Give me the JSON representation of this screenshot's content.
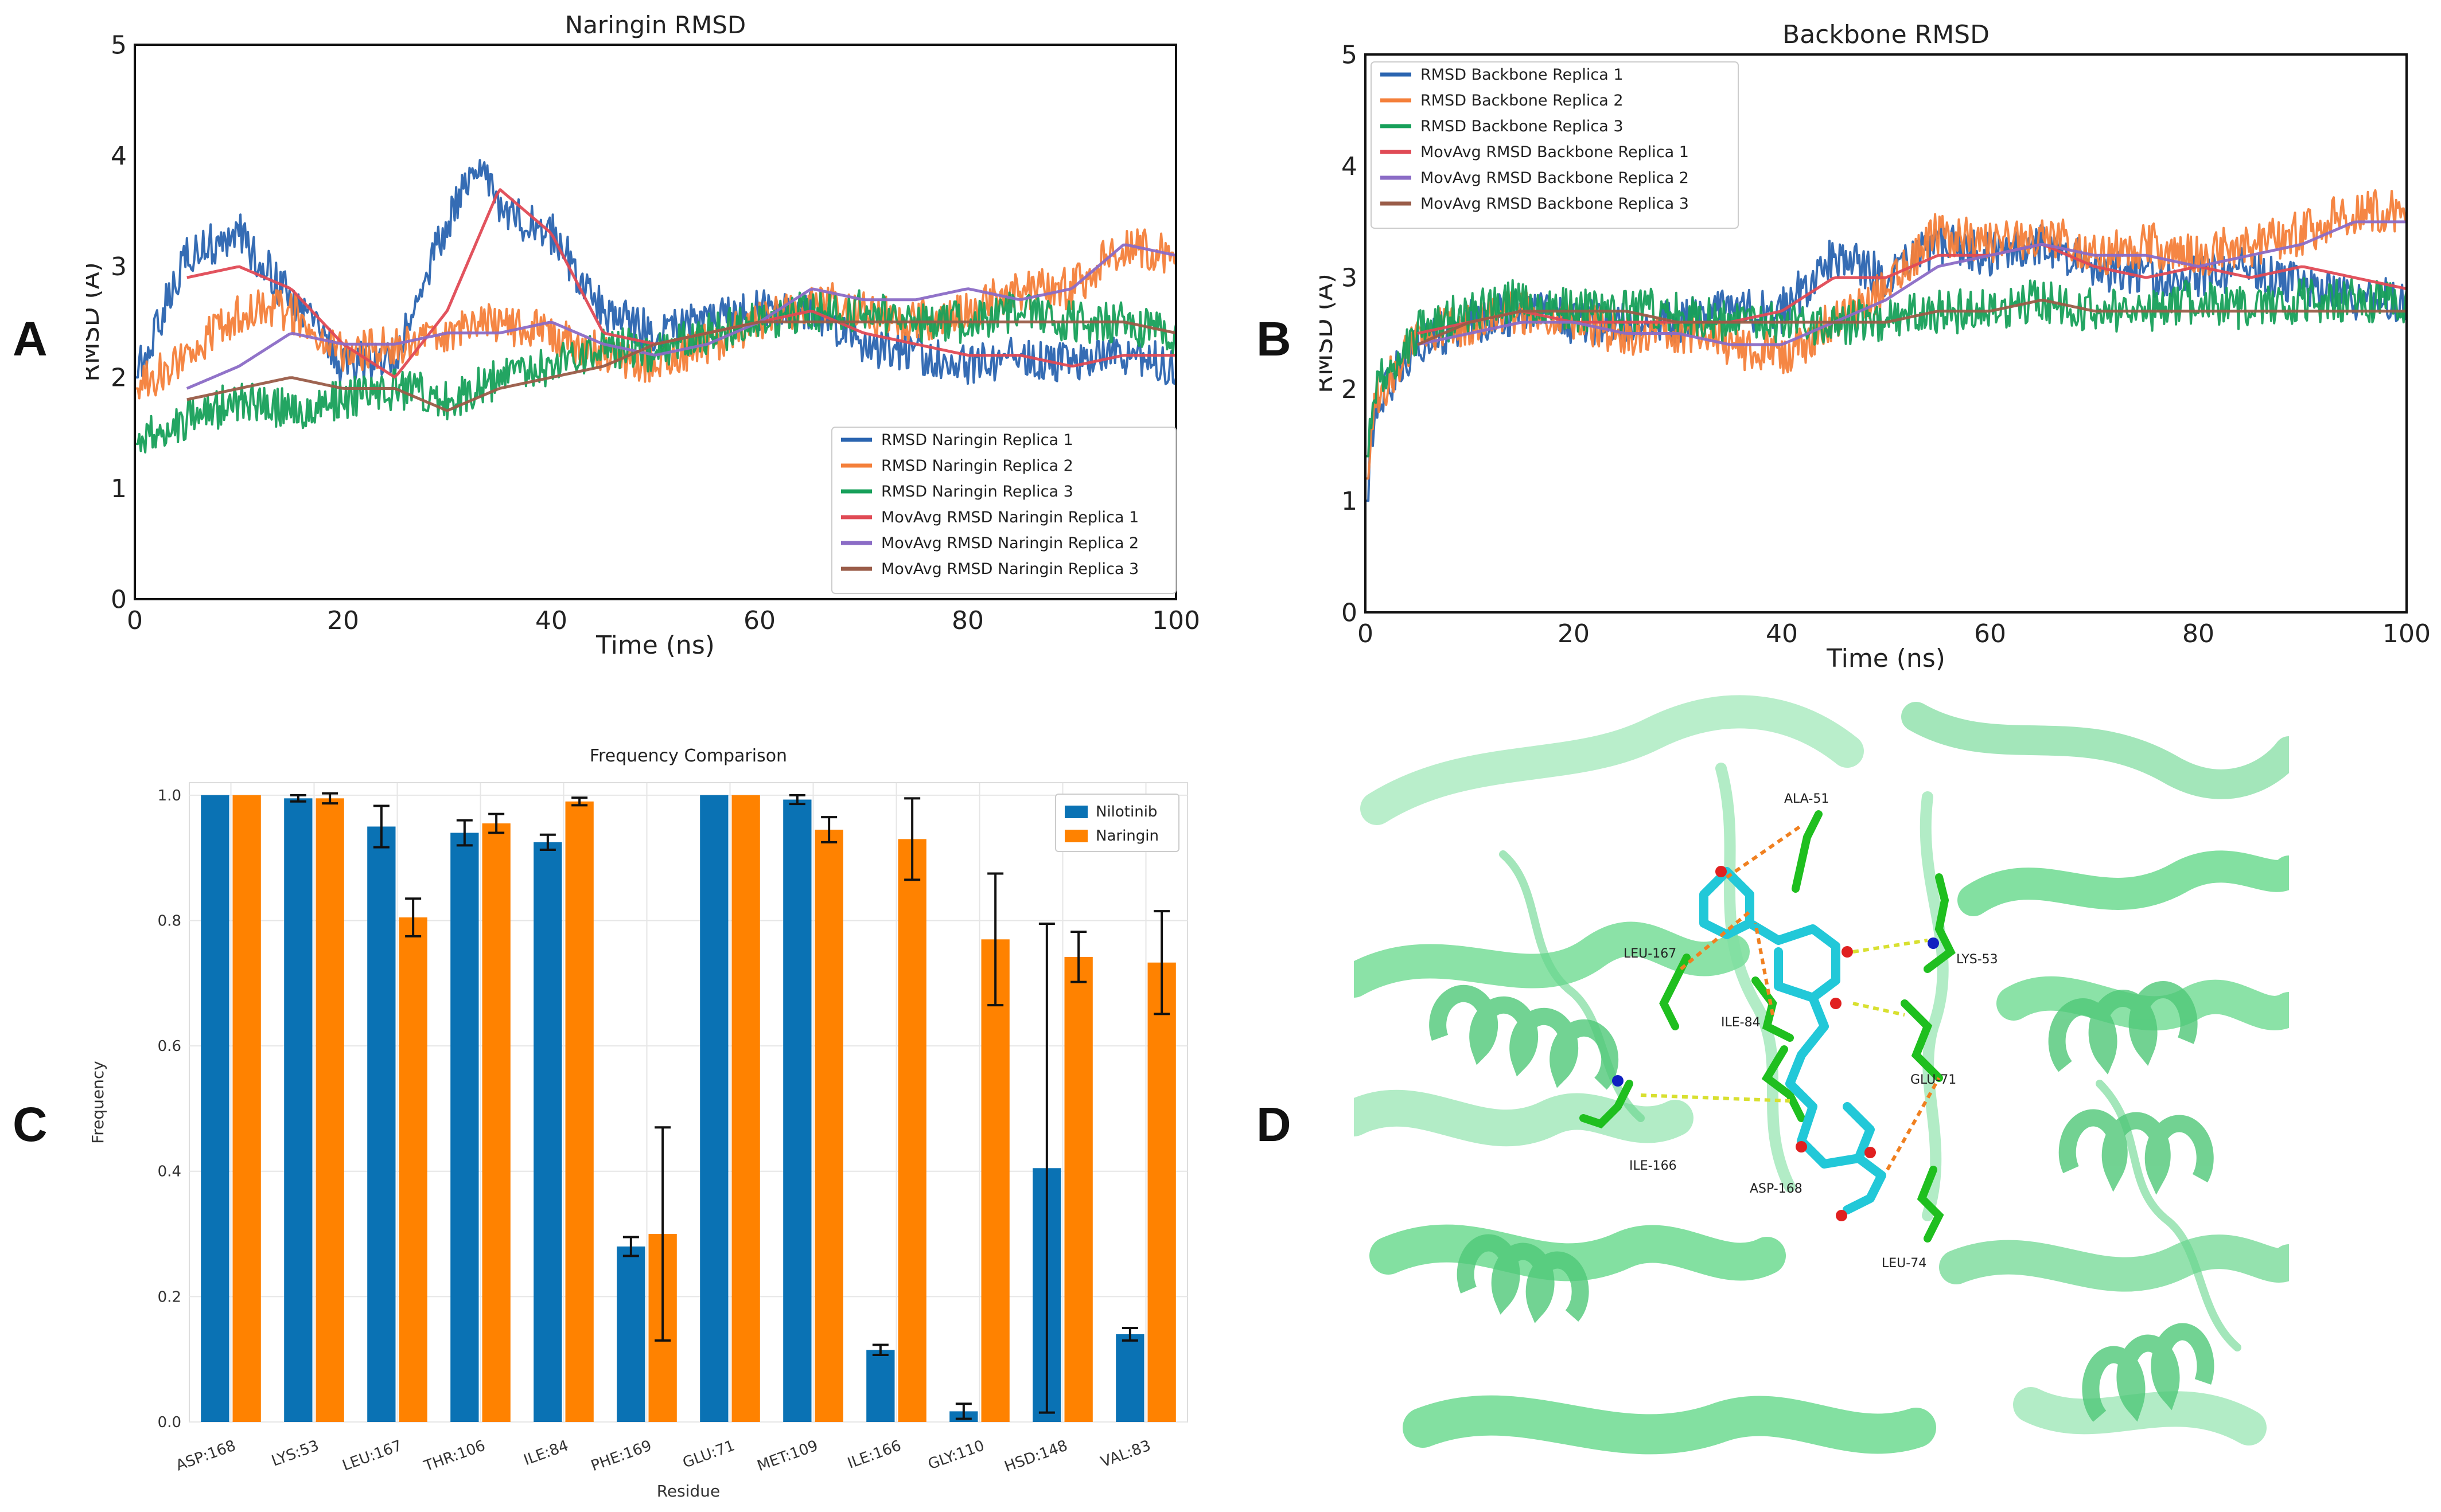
{
  "panels": {
    "a": {
      "letter": "A",
      "chart_data": {
        "type": "line",
        "title": "Naringin RMSD",
        "xlabel": "Time (ns)",
        "ylabel": "RMSD (Å)",
        "xlim": [
          0,
          100
        ],
        "ylim": [
          0,
          5
        ],
        "xticks": [
          0,
          20,
          40,
          60,
          80,
          100
        ],
        "yticks": [
          0,
          1,
          2,
          3,
          4,
          5
        ],
        "legend_position": "bottom-right",
        "series": [
          {
            "name": "RMSD Naringin Replica 1",
            "color": "#2a64b0",
            "kind": "raw",
            "x": [
              0,
              5,
              10,
              15,
              20,
              25,
              30,
              33,
              35,
              40,
              45,
              50,
              55,
              60,
              65,
              70,
              75,
              80,
              85,
              90,
              95,
              100
            ],
            "y": [
              2.0,
              3.1,
              3.3,
              2.7,
              2.1,
              2.2,
              3.4,
              3.9,
              3.5,
              3.3,
              2.6,
              2.4,
              2.5,
              2.6,
              2.6,
              2.3,
              2.2,
              2.1,
              2.2,
              2.1,
              2.2,
              2.1
            ]
          },
          {
            "name": "RMSD Naringin Replica 2",
            "color": "#f47f3a",
            "kind": "raw",
            "x": [
              0,
              5,
              10,
              15,
              20,
              25,
              30,
              35,
              40,
              45,
              50,
              55,
              60,
              65,
              70,
              75,
              80,
              85,
              90,
              95,
              100
            ],
            "y": [
              1.9,
              2.2,
              2.6,
              2.6,
              2.2,
              2.3,
              2.4,
              2.5,
              2.4,
              2.2,
              2.1,
              2.3,
              2.5,
              2.7,
              2.6,
              2.5,
              2.6,
              2.8,
              2.8,
              3.2,
              3.1
            ]
          },
          {
            "name": "RMSD Naringin Replica 3",
            "color": "#17a05a",
            "kind": "raw",
            "x": [
              0,
              5,
              10,
              15,
              20,
              25,
              30,
              35,
              40,
              45,
              50,
              55,
              60,
              65,
              70,
              75,
              80,
              85,
              90,
              95,
              100
            ],
            "y": [
              1.4,
              1.6,
              1.8,
              1.7,
              1.8,
              1.9,
              1.8,
              2.0,
              2.1,
              2.3,
              2.2,
              2.4,
              2.5,
              2.6,
              2.6,
              2.5,
              2.5,
              2.6,
              2.5,
              2.5,
              2.4
            ]
          },
          {
            "name": "MovAvg RMSD Naringin Replica 1",
            "color": "#e04a55",
            "kind": "avg",
            "x": [
              5,
              10,
              15,
              20,
              25,
              30,
              35,
              40,
              45,
              50,
              55,
              60,
              65,
              70,
              75,
              80,
              85,
              90,
              95,
              100
            ],
            "y": [
              2.9,
              3.0,
              2.8,
              2.3,
              2.0,
              2.6,
              3.7,
              3.3,
              2.4,
              2.3,
              2.4,
              2.5,
              2.6,
              2.4,
              2.3,
              2.2,
              2.2,
              2.1,
              2.2,
              2.2
            ]
          },
          {
            "name": "MovAvg RMSD Naringin Replica 2",
            "color": "#8b6cc6",
            "kind": "avg",
            "x": [
              5,
              10,
              15,
              20,
              25,
              30,
              35,
              40,
              45,
              50,
              55,
              60,
              65,
              70,
              75,
              80,
              85,
              90,
              95,
              100
            ],
            "y": [
              1.9,
              2.1,
              2.4,
              2.3,
              2.3,
              2.4,
              2.4,
              2.5,
              2.3,
              2.2,
              2.3,
              2.5,
              2.8,
              2.7,
              2.7,
              2.8,
              2.7,
              2.8,
              3.2,
              3.1
            ]
          },
          {
            "name": "MovAvg RMSD Naringin Replica 3",
            "color": "#9a5c48",
            "kind": "avg",
            "x": [
              5,
              10,
              15,
              20,
              25,
              30,
              35,
              40,
              45,
              50,
              55,
              60,
              65,
              70,
              75,
              80,
              85,
              90,
              95,
              100
            ],
            "y": [
              1.8,
              1.9,
              2.0,
              1.9,
              1.9,
              1.7,
              1.9,
              2.0,
              2.1,
              2.3,
              2.4,
              2.5,
              2.5,
              2.5,
              2.5,
              2.5,
              2.5,
              2.5,
              2.5,
              2.4
            ]
          }
        ]
      }
    },
    "b": {
      "letter": "B",
      "chart_data": {
        "type": "line",
        "title": "Backbone RMSD",
        "xlabel": "Time (ns)",
        "ylabel": "RMSD (Å)",
        "xlim": [
          0,
          100
        ],
        "ylim": [
          0,
          5
        ],
        "xticks": [
          0,
          20,
          40,
          60,
          80,
          100
        ],
        "yticks": [
          0,
          1,
          2,
          3,
          4,
          5
        ],
        "legend_position": "top-left",
        "series": [
          {
            "name": "RMSD Backbone Replica 1",
            "color": "#2a64b0",
            "kind": "raw",
            "x": [
              0,
              1,
              5,
              10,
              15,
              20,
              25,
              30,
              35,
              40,
              45,
              50,
              55,
              60,
              65,
              70,
              75,
              80,
              85,
              90,
              95,
              100
            ],
            "y": [
              1.0,
              1.9,
              2.4,
              2.6,
              2.7,
              2.6,
              2.6,
              2.6,
              2.7,
              2.7,
              3.2,
              3.0,
              3.3,
              3.2,
              3.3,
              3.1,
              3.0,
              3.0,
              3.1,
              2.9,
              2.8,
              2.8
            ]
          },
          {
            "name": "RMSD Backbone Replica 2",
            "color": "#f47f3a",
            "kind": "raw",
            "x": [
              0,
              1,
              5,
              10,
              15,
              20,
              25,
              30,
              35,
              40,
              45,
              50,
              55,
              60,
              65,
              70,
              75,
              80,
              85,
              90,
              95,
              100
            ],
            "y": [
              1.2,
              1.9,
              2.5,
              2.6,
              2.7,
              2.6,
              2.5,
              2.5,
              2.4,
              2.3,
              2.6,
              2.9,
              3.4,
              3.3,
              3.4,
              3.2,
              3.3,
              3.2,
              3.3,
              3.4,
              3.6,
              3.6
            ]
          },
          {
            "name": "RMSD Backbone Replica 3",
            "color": "#17a05a",
            "kind": "raw",
            "x": [
              0,
              1,
              5,
              10,
              15,
              20,
              25,
              30,
              35,
              40,
              45,
              50,
              55,
              60,
              65,
              70,
              75,
              80,
              85,
              90,
              95,
              100
            ],
            "y": [
              1.4,
              2.0,
              2.5,
              2.7,
              2.8,
              2.7,
              2.7,
              2.7,
              2.6,
              2.6,
              2.6,
              2.6,
              2.7,
              2.7,
              2.8,
              2.7,
              2.7,
              2.8,
              2.7,
              2.8,
              2.8,
              2.8
            ]
          },
          {
            "name": "MovAvg RMSD Backbone Replica 1",
            "color": "#e04a55",
            "kind": "avg",
            "x": [
              5,
              10,
              15,
              20,
              25,
              30,
              35,
              40,
              45,
              50,
              55,
              60,
              65,
              70,
              75,
              80,
              85,
              90,
              95,
              100
            ],
            "y": [
              2.5,
              2.6,
              2.7,
              2.6,
              2.6,
              2.6,
              2.6,
              2.7,
              3.0,
              3.0,
              3.2,
              3.2,
              3.3,
              3.1,
              3.0,
              3.1,
              3.0,
              3.1,
              3.0,
              2.9
            ]
          },
          {
            "name": "MovAvg RMSD Backbone Replica 2",
            "color": "#8b6cc6",
            "kind": "avg",
            "x": [
              5,
              10,
              15,
              20,
              25,
              30,
              35,
              40,
              45,
              50,
              55,
              60,
              65,
              70,
              75,
              80,
              85,
              90,
              95,
              100
            ],
            "y": [
              2.4,
              2.5,
              2.6,
              2.6,
              2.5,
              2.5,
              2.4,
              2.4,
              2.6,
              2.8,
              3.1,
              3.2,
              3.3,
              3.2,
              3.2,
              3.1,
              3.2,
              3.3,
              3.5,
              3.5
            ]
          },
          {
            "name": "MovAvg RMSD Backbone Replica 3",
            "color": "#9a5c48",
            "kind": "avg",
            "x": [
              5,
              10,
              15,
              20,
              25,
              30,
              35,
              40,
              45,
              50,
              55,
              60,
              65,
              70,
              75,
              80,
              85,
              90,
              95,
              100
            ],
            "y": [
              2.4,
              2.6,
              2.7,
              2.7,
              2.7,
              2.6,
              2.6,
              2.6,
              2.6,
              2.6,
              2.7,
              2.7,
              2.8,
              2.7,
              2.7,
              2.7,
              2.7,
              2.7,
              2.7,
              2.7
            ]
          }
        ]
      }
    },
    "c": {
      "letter": "C",
      "chart_data": {
        "type": "bar",
        "title": "Frequency Comparison",
        "xlabel": "Residue",
        "ylabel": "Frequency",
        "ylim": [
          0,
          1.02
        ],
        "yticks": [
          "0.0",
          "0.2",
          "0.4",
          "0.6",
          "0.8",
          "1.0"
        ],
        "legend_position": "top-right",
        "categories": [
          "ASP:168",
          "LYS:53",
          "LEU:167",
          "THR:106",
          "ILE:84",
          "PHE:169",
          "GLU:71",
          "MET:109",
          "ILE:166",
          "GLY:110",
          "HSD:148",
          "VAL:83"
        ],
        "series": [
          {
            "name": "Nilotinib",
            "color": "#0a72b4",
            "values": [
              1.0,
              0.995,
              0.95,
              0.94,
              0.925,
              0.28,
              1.0,
              0.993,
              0.115,
              0.017,
              0.405,
              0.14
            ],
            "errors": [
              0.0,
              0.005,
              0.033,
              0.02,
              0.012,
              0.015,
              0.0,
              0.007,
              0.008,
              0.012,
              0.39,
              0.01
            ]
          },
          {
            "name": "Naringin",
            "color": "#ff8200",
            "values": [
              1.0,
              0.995,
              0.805,
              0.955,
              0.99,
              0.3,
              1.0,
              0.945,
              0.93,
              0.77,
              0.742,
              0.733
            ],
            "errors": [
              0.0,
              0.008,
              0.03,
              0.015,
              0.006,
              0.17,
              0.0,
              0.02,
              0.065,
              0.105,
              0.04,
              0.082
            ]
          }
        ]
      }
    },
    "d": {
      "letter": "D",
      "residue_labels": [
        "ALA-51",
        "LYS-53",
        "LEU-167",
        "ILE-84",
        "GLU-71",
        "ILE-166",
        "ASP-168",
        "LEU-74"
      ],
      "colors": {
        "protein": "#5ad682",
        "residue": "#1fbf1f",
        "ligand": "#22c8d8",
        "oxygen": "#e02020",
        "nitrogen": "#1020c0",
        "hbond": "#f08020",
        "contact": "#d8e030"
      }
    }
  }
}
